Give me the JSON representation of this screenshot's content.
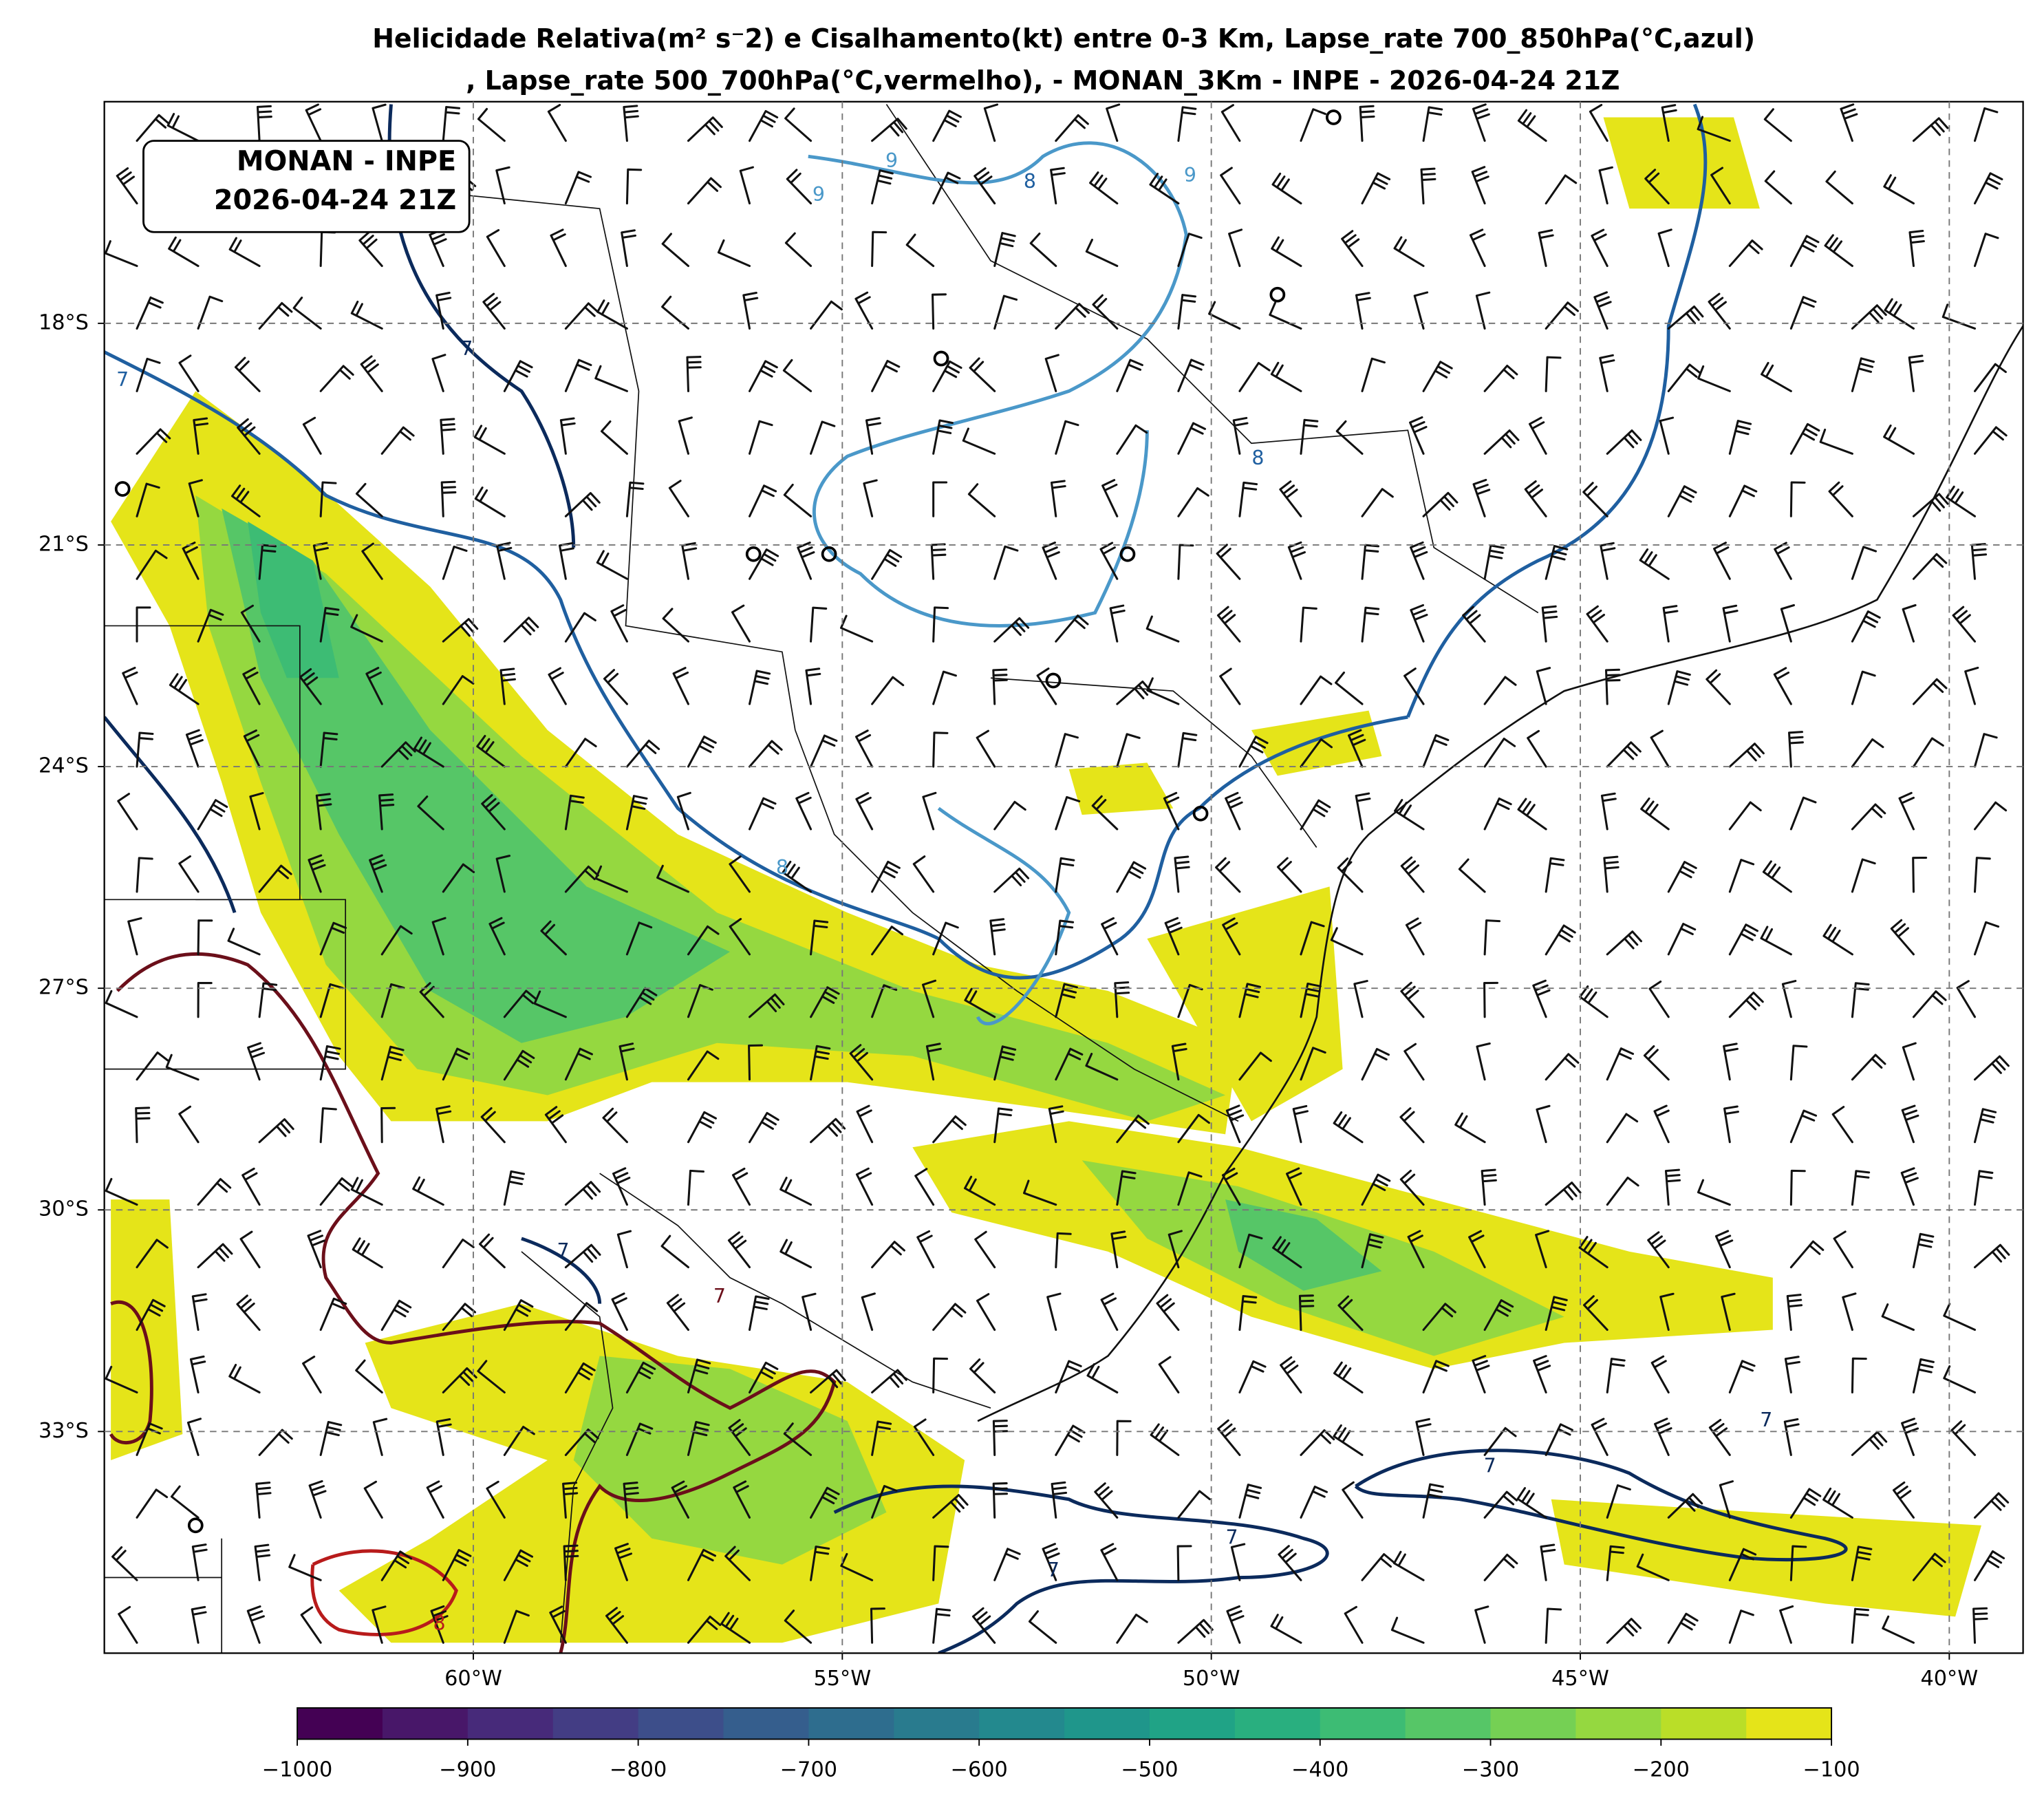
{
  "header": {
    "title": [
      "Helicidade Relativa(m² s⁻2) e Cisalhamento(kt) entre 0-3 Km, Lapse_rate 700_850hPa(°C,azul)",
      ", Lapse_rate 500_700hPa(°C,vermelho),  - MONAN_3Km - INPE - 2026-04-24 21Z"
    ]
  },
  "annotation": [
    "MONAN - INPE",
    "2026-04-24 21Z"
  ],
  "map": {
    "lonlim": [
      -65,
      -39
    ],
    "latlim": [
      -36,
      -15
    ],
    "grid": true,
    "lonticks": [
      {
        "value": -60,
        "label": "60°W"
      },
      {
        "value": -55,
        "label": "55°W"
      },
      {
        "value": -50,
        "label": "50°W"
      },
      {
        "value": -45,
        "label": "45°W"
      },
      {
        "value": -40,
        "label": "40°W"
      }
    ],
    "latticks": [
      {
        "value": -18,
        "label": "18°S"
      },
      {
        "value": -21,
        "label": "21°S"
      },
      {
        "value": -24,
        "label": "24°S"
      },
      {
        "value": -27,
        "label": "27°S"
      },
      {
        "value": -30,
        "label": "30°S"
      },
      {
        "value": -33,
        "label": "33°S"
      }
    ],
    "contour_labels": [
      7,
      7,
      9,
      9,
      8,
      8,
      9,
      8,
      7,
      7,
      7,
      7,
      7,
      8,
      7
    ]
  },
  "colorbar": {
    "lim": [
      -1000,
      -100
    ],
    "colors": [
      "#440154",
      "#481769",
      "#472a7a",
      "#433d84",
      "#3d4e8a",
      "#355e8d",
      "#2e6d8e",
      "#297b8e",
      "#23898e",
      "#1f968b",
      "#20a386",
      "#29af7f",
      "#3dbc74",
      "#56c667",
      "#75d054",
      "#95d840",
      "#bade28",
      "#e5e419"
    ],
    "ticks": [
      {
        "value": -1000,
        "label": "−1000"
      },
      {
        "value": -900,
        "label": "−900"
      },
      {
        "value": -800,
        "label": "−800"
      },
      {
        "value": -700,
        "label": "−700"
      },
      {
        "value": -600,
        "label": "−600"
      },
      {
        "value": -500,
        "label": "−500"
      },
      {
        "value": -400,
        "label": "−400"
      },
      {
        "value": -300,
        "label": "−300"
      },
      {
        "value": -200,
        "label": "−200"
      },
      {
        "value": -100,
        "label": "−100"
      }
    ]
  }
}
